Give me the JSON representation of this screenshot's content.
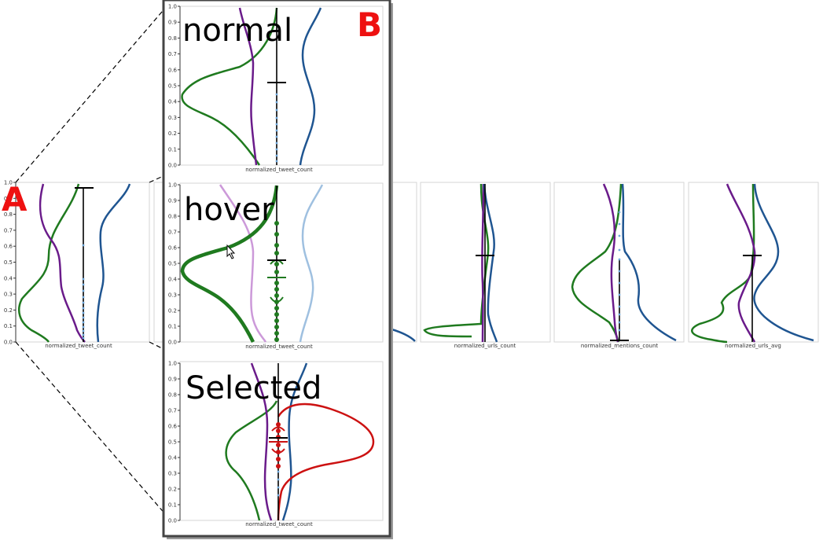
{
  "colors": {
    "green": "#1f7a1f",
    "purple": "#6a1b8a",
    "blue": "#1f5591",
    "red": "#cc1111",
    "light_purple": "#cc99d9",
    "light_blue": "#9fc0e0",
    "point_blue": "#6fa8dc",
    "panel_label": "#ee1111"
  },
  "panel_labels": {
    "a": "A",
    "b": "B"
  },
  "chart_data": [
    {
      "type": "violin",
      "panel": "A",
      "xlabel": "normalized_tweet_count",
      "ylim": [
        0,
        1
      ],
      "yticks": [
        "0.0",
        "0.1",
        "0.2",
        "0.3",
        "0.4",
        "0.5",
        "0.6",
        "0.7",
        "0.8",
        "0.9",
        "1.0"
      ],
      "marker_mean": 0.97,
      "marker_whisker": [
        0.0,
        0.97
      ]
    },
    {
      "type": "violin",
      "panel": "hidden",
      "xlabel": "",
      "ylim": [
        0,
        1
      ]
    },
    {
      "type": "violin",
      "panel": "partial",
      "xlabel": "",
      "ylim": [
        0,
        1
      ]
    },
    {
      "type": "violin",
      "xlabel": "normalized_urls_count",
      "ylim": [
        0,
        1
      ],
      "marker_mean": 0.55,
      "marker_whisker": [
        0.0,
        1.0
      ]
    },
    {
      "type": "violin",
      "xlabel": "normalized_mentions_count",
      "ylim": [
        0,
        1
      ],
      "marker_mean": 0.01,
      "marker_whisker": [
        0.01,
        0.55
      ]
    },
    {
      "type": "violin",
      "xlabel": "normalized_urls_avg",
      "ylim": [
        0,
        1
      ],
      "marker_mean": 0.55,
      "marker_whisker": [
        0.0,
        0.55
      ]
    },
    {
      "type": "violin",
      "panel": "B",
      "state": "normal",
      "xlabel": "normalized_tweet_count",
      "ylim": [
        0,
        1
      ],
      "yticks": [
        "0.0",
        "0.1",
        "0.2",
        "0.3",
        "0.4",
        "0.5",
        "0.6",
        "0.7",
        "0.8",
        "0.9",
        "1.0"
      ],
      "marker_mean": 0.52,
      "marker_whisker": [
        0.0,
        1.0
      ]
    },
    {
      "type": "violin",
      "panel": "B",
      "state": "hover",
      "xlabel": "normalized_tweet_count",
      "ylim": [
        0,
        1
      ],
      "yticks": [
        "0.0",
        "0.1",
        "0.2",
        "0.3",
        "0.4",
        "0.5",
        "0.6",
        "0.7",
        "0.8",
        "0.9",
        "1.0"
      ],
      "marker_mean": 0.52,
      "highlight_mean": 0.41,
      "marker_whisker": [
        0.0,
        1.0
      ]
    },
    {
      "type": "violin",
      "panel": "B",
      "state": "Selected",
      "xlabel": "normalized_tweet_count",
      "ylim": [
        0,
        1
      ],
      "yticks": [
        "0.0",
        "0.1",
        "0.2",
        "0.3",
        "0.4",
        "0.5",
        "0.6",
        "0.7",
        "0.8",
        "0.9",
        "1.0"
      ],
      "marker_mean": 0.52,
      "highlight_mean": 0.5,
      "marker_whisker": [
        0.0,
        1.0
      ]
    }
  ]
}
